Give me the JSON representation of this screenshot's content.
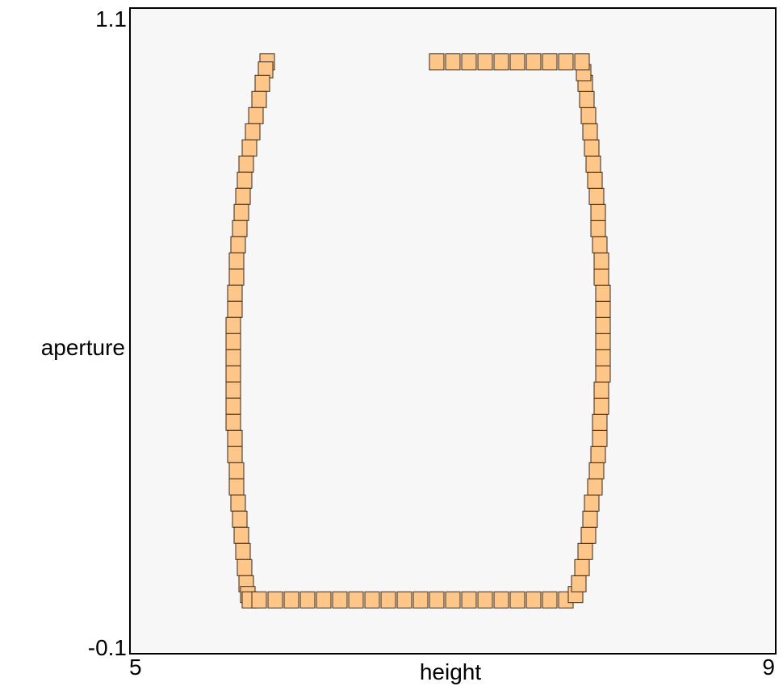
{
  "chart_data": {
    "type": "scatter",
    "marker": "rectangle",
    "title": "",
    "xlabel": "height",
    "ylabel": "aperture",
    "xlim": [
      5,
      9
    ],
    "ylim": [
      -0.1,
      1.1
    ],
    "x_tick_labels": [
      "5",
      "9"
    ],
    "y_tick_labels": [
      "-0.1",
      "1.1"
    ],
    "grid": false,
    "colors": {
      "fill": "#ffc68a",
      "stroke": "#3a2a1a",
      "plot_background": "#f7f7f7"
    },
    "series": [
      {
        "name": "",
        "marks": [
          {
            "x": 5.85,
            "y": 1.0
          },
          {
            "x": 5.84,
            "y": 0.985
          },
          {
            "x": 5.82,
            "y": 0.96
          },
          {
            "x": 5.8,
            "y": 0.93
          },
          {
            "x": 5.78,
            "y": 0.9
          },
          {
            "x": 5.76,
            "y": 0.87
          },
          {
            "x": 5.74,
            "y": 0.84
          },
          {
            "x": 5.72,
            "y": 0.81
          },
          {
            "x": 5.71,
            "y": 0.78
          },
          {
            "x": 5.7,
            "y": 0.75
          },
          {
            "x": 5.69,
            "y": 0.72
          },
          {
            "x": 5.68,
            "y": 0.69
          },
          {
            "x": 5.67,
            "y": 0.66
          },
          {
            "x": 5.66,
            "y": 0.63
          },
          {
            "x": 5.66,
            "y": 0.6
          },
          {
            "x": 5.65,
            "y": 0.57
          },
          {
            "x": 5.65,
            "y": 0.54
          },
          {
            "x": 5.64,
            "y": 0.51
          },
          {
            "x": 5.64,
            "y": 0.48
          },
          {
            "x": 5.64,
            "y": 0.45
          },
          {
            "x": 5.64,
            "y": 0.42
          },
          {
            "x": 5.64,
            "y": 0.39
          },
          {
            "x": 5.64,
            "y": 0.36
          },
          {
            "x": 5.64,
            "y": 0.33
          },
          {
            "x": 5.65,
            "y": 0.3
          },
          {
            "x": 5.65,
            "y": 0.27
          },
          {
            "x": 5.66,
            "y": 0.24
          },
          {
            "x": 5.66,
            "y": 0.21
          },
          {
            "x": 5.67,
            "y": 0.18
          },
          {
            "x": 5.68,
            "y": 0.15
          },
          {
            "x": 5.69,
            "y": 0.12
          },
          {
            "x": 5.7,
            "y": 0.09
          },
          {
            "x": 5.71,
            "y": 0.06
          },
          {
            "x": 5.72,
            "y": 0.03
          },
          {
            "x": 5.73,
            "y": 0.01
          },
          {
            "x": 5.74,
            "y": 0.0
          },
          {
            "x": 5.8,
            "y": 0.0
          },
          {
            "x": 5.9,
            "y": 0.0
          },
          {
            "x": 6.0,
            "y": 0.0
          },
          {
            "x": 6.1,
            "y": 0.0
          },
          {
            "x": 6.2,
            "y": 0.0
          },
          {
            "x": 6.3,
            "y": 0.0
          },
          {
            "x": 6.4,
            "y": 0.0
          },
          {
            "x": 6.5,
            "y": 0.0
          },
          {
            "x": 6.6,
            "y": 0.0
          },
          {
            "x": 6.7,
            "y": 0.0
          },
          {
            "x": 6.8,
            "y": 0.0
          },
          {
            "x": 6.9,
            "y": 0.0
          },
          {
            "x": 7.0,
            "y": 0.0
          },
          {
            "x": 7.1,
            "y": 0.0
          },
          {
            "x": 7.2,
            "y": 0.0
          },
          {
            "x": 7.3,
            "y": 0.0
          },
          {
            "x": 7.4,
            "y": 0.0
          },
          {
            "x": 7.5,
            "y": 0.0
          },
          {
            "x": 7.6,
            "y": 0.0
          },
          {
            "x": 7.7,
            "y": 0.0
          },
          {
            "x": 7.76,
            "y": 0.01
          },
          {
            "x": 7.78,
            "y": 0.03
          },
          {
            "x": 7.8,
            "y": 0.06
          },
          {
            "x": 7.82,
            "y": 0.09
          },
          {
            "x": 7.84,
            "y": 0.12
          },
          {
            "x": 7.85,
            "y": 0.15
          },
          {
            "x": 7.86,
            "y": 0.18
          },
          {
            "x": 7.88,
            "y": 0.21
          },
          {
            "x": 7.89,
            "y": 0.24
          },
          {
            "x": 7.9,
            "y": 0.27
          },
          {
            "x": 7.91,
            "y": 0.3
          },
          {
            "x": 7.91,
            "y": 0.33
          },
          {
            "x": 7.92,
            "y": 0.36
          },
          {
            "x": 7.92,
            "y": 0.39
          },
          {
            "x": 7.93,
            "y": 0.42
          },
          {
            "x": 7.93,
            "y": 0.45
          },
          {
            "x": 7.93,
            "y": 0.48
          },
          {
            "x": 7.93,
            "y": 0.51
          },
          {
            "x": 7.93,
            "y": 0.54
          },
          {
            "x": 7.93,
            "y": 0.57
          },
          {
            "x": 7.92,
            "y": 0.6
          },
          {
            "x": 7.92,
            "y": 0.63
          },
          {
            "x": 7.91,
            "y": 0.66
          },
          {
            "x": 7.9,
            "y": 0.69
          },
          {
            "x": 7.9,
            "y": 0.72
          },
          {
            "x": 7.89,
            "y": 0.75
          },
          {
            "x": 7.88,
            "y": 0.78
          },
          {
            "x": 7.87,
            "y": 0.81
          },
          {
            "x": 7.86,
            "y": 0.84
          },
          {
            "x": 7.85,
            "y": 0.87
          },
          {
            "x": 7.84,
            "y": 0.9
          },
          {
            "x": 7.83,
            "y": 0.93
          },
          {
            "x": 7.82,
            "y": 0.96
          },
          {
            "x": 7.81,
            "y": 0.98
          },
          {
            "x": 7.8,
            "y": 1.0
          },
          {
            "x": 7.7,
            "y": 1.0
          },
          {
            "x": 7.6,
            "y": 1.0
          },
          {
            "x": 7.5,
            "y": 1.0
          },
          {
            "x": 7.4,
            "y": 1.0
          },
          {
            "x": 7.3,
            "y": 1.0
          },
          {
            "x": 7.2,
            "y": 1.0
          },
          {
            "x": 7.1,
            "y": 1.0
          },
          {
            "x": 7.0,
            "y": 1.0
          },
          {
            "x": 6.9,
            "y": 1.0
          }
        ]
      }
    ]
  }
}
